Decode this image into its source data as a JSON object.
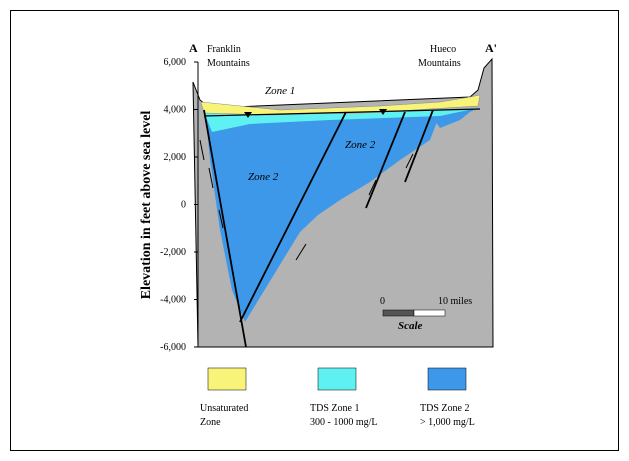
{
  "section": {
    "start_label": "A",
    "end_label": "A'",
    "left_place": [
      "Franklin",
      "Mountains"
    ],
    "right_place": [
      "Hueco",
      "Mountains"
    ],
    "zone_labels": [
      "Zone 1",
      "Zone 2",
      "Zone 2"
    ]
  },
  "axis": {
    "title": "Elevation in feet above sea level",
    "ticks": [
      "6,000",
      "4,000",
      "2,000",
      "0",
      "-2,000",
      "-4,000",
      "-6,000"
    ]
  },
  "scale": {
    "start": "0",
    "end": "10 miles",
    "title": "Scale"
  },
  "legend": [
    {
      "lines": [
        "Unsaturated",
        "Zone"
      ]
    },
    {
      "lines": [
        "TDS Zone 1",
        "300 - 1000 mg/L"
      ]
    },
    {
      "lines": [
        "TDS Zone 2",
        "> 1,000 mg/L"
      ]
    }
  ]
}
